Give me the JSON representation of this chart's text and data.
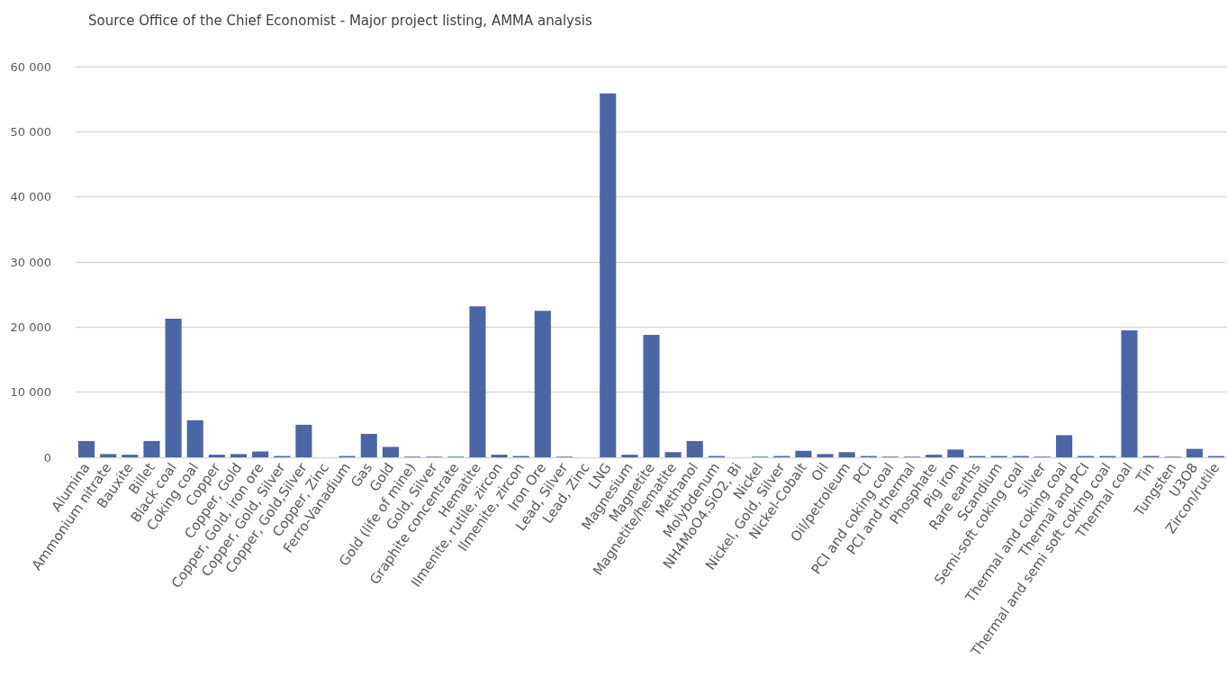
{
  "chart_data": {
    "type": "bar",
    "title": "Source Office of the Chief Economist - Major project listing, AMMA analysis",
    "categories": [
      "Alumina",
      "Ammonium nitrate",
      "Bauxite",
      "Billet",
      "Black coal",
      "Coking coal",
      "Copper",
      "Copper, Gold",
      "Copper, Gold, iron ore",
      "Copper, Gold, Silver",
      "Copper, Gold,Silver",
      "Copper, Zinc",
      "Ferro-Vanadium",
      "Gas",
      "Gold",
      "Gold (life of mine)",
      "Gold, Silver",
      "Graphite concentrate",
      "Hematite",
      "Ilmenite, rutile, zircon",
      "Ilmenite, zircon",
      "Iron Ore",
      "Lead, Silver",
      "Lead, Zinc",
      "LNG",
      "Magnesium",
      "Magnetite",
      "Magnetite/hematite",
      "Methanol",
      "Molybdenum",
      "NH4MoO4.SiO2, Bi",
      "Nickel",
      "Nickel, Gold, Silver",
      "Nickel-Cobalt",
      "Oil",
      "Oil/petroleum",
      "PCI",
      "PCI and coking coal",
      "PCI and thermal",
      "Phosphate",
      "Pig iron",
      "Rare earths",
      "Scandium",
      "Semi-soft coking coal",
      "Silver",
      "Thermal and coking coal",
      "Thermal and PCI",
      "Thermal and semi soft coking coal",
      "Thermal coal",
      "Tin",
      "Tungsten",
      "U3O8",
      "Zircon/rutile"
    ],
    "values": [
      2500,
      500,
      400,
      2500,
      21300,
      5700,
      400,
      500,
      900,
      200,
      5000,
      0,
      200,
      3600,
      1600,
      100,
      100,
      100,
      23200,
      400,
      200,
      22500,
      100,
      0,
      55900,
      400,
      18800,
      800,
      2500,
      200,
      0,
      100,
      200,
      1000,
      500,
      800,
      200,
      100,
      100,
      400,
      1200,
      200,
      200,
      200,
      100,
      3400,
      200,
      200,
      19500,
      200,
      100,
      1300,
      200
    ],
    "color": "#4a66a4",
    "ylim": [
      0,
      60000
    ],
    "yticks": [
      0,
      {
        "value": 10000,
        "label": "10 000"
      },
      {
        "value": 20000,
        "label": "20 000"
      },
      {
        "value": 30000,
        "label": "30 000"
      },
      {
        "value": 40000,
        "label": "40 000"
      },
      {
        "value": 50000,
        "label": "50 000"
      },
      {
        "value": 60000,
        "label": "60 000"
      }
    ],
    "grid": "y"
  }
}
